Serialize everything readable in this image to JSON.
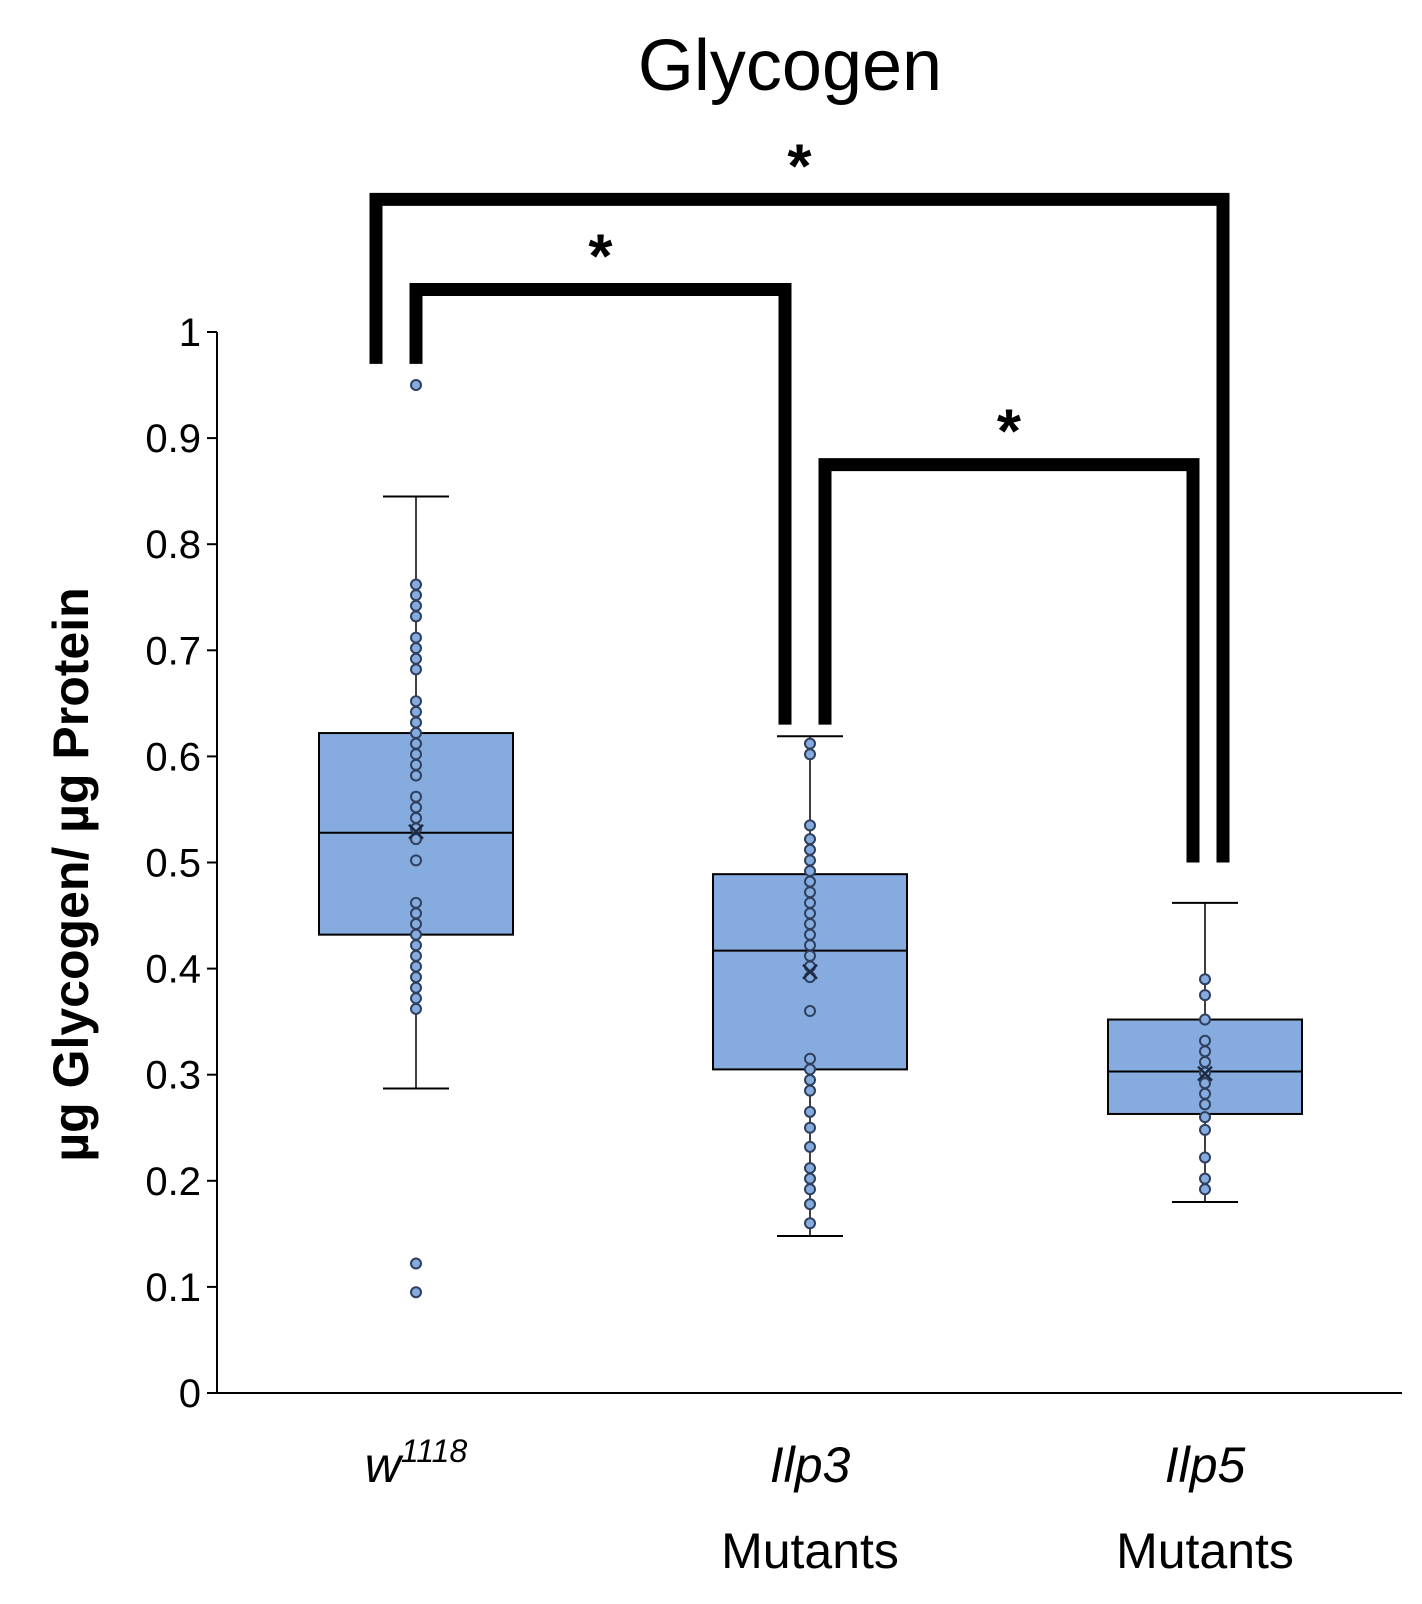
{
  "chart_data": {
    "type": "box",
    "title": "Glycogen",
    "ylabel": "µg Glycogen/ µg Protein",
    "xlabel": "",
    "ylim": [
      0,
      1
    ],
    "yticks": [
      "0",
      "0.1",
      "0.2",
      "0.3",
      "0.4",
      "0.5",
      "0.6",
      "0.7",
      "0.8",
      "0.9",
      "1"
    ],
    "grid": false,
    "legend": "none",
    "colors": {
      "box_fill": "#86acdf",
      "box_stroke": "#000000",
      "point_stroke": "#2f3f5e",
      "bracket": "#000000"
    },
    "groups": [
      {
        "name": "w",
        "sup": "1118",
        "sub": "",
        "whisker_low": 0.287,
        "q1": 0.432,
        "median": 0.528,
        "q3": 0.622,
        "whisker_high": 0.845,
        "mean": 0.529,
        "points": [
          0.095,
          0.122,
          0.362,
          0.372,
          0.382,
          0.392,
          0.402,
          0.412,
          0.422,
          0.432,
          0.442,
          0.452,
          0.462,
          0.502,
          0.522,
          0.532,
          0.542,
          0.552,
          0.562,
          0.582,
          0.592,
          0.602,
          0.612,
          0.622,
          0.632,
          0.642,
          0.652,
          0.682,
          0.692,
          0.702,
          0.712,
          0.732,
          0.742,
          0.752,
          0.762,
          0.95
        ]
      },
      {
        "name": "Ilp3",
        "sup": "",
        "sub": "Mutants",
        "whisker_low": 0.148,
        "q1": 0.305,
        "median": 0.417,
        "q3": 0.489,
        "whisker_high": 0.619,
        "mean": 0.397,
        "points": [
          0.16,
          0.178,
          0.192,
          0.202,
          0.212,
          0.232,
          0.25,
          0.265,
          0.285,
          0.295,
          0.305,
          0.315,
          0.36,
          0.392,
          0.402,
          0.412,
          0.422,
          0.432,
          0.442,
          0.452,
          0.462,
          0.472,
          0.482,
          0.492,
          0.502,
          0.512,
          0.522,
          0.535,
          0.602,
          0.612
        ]
      },
      {
        "name": "Ilp5",
        "sup": "",
        "sub": "Mutants",
        "whisker_low": 0.18,
        "q1": 0.263,
        "median": 0.303,
        "q3": 0.352,
        "whisker_high": 0.462,
        "mean": 0.301,
        "points": [
          0.192,
          0.202,
          0.222,
          0.248,
          0.26,
          0.272,
          0.282,
          0.292,
          0.302,
          0.312,
          0.322,
          0.332,
          0.352,
          0.375,
          0.39
        ]
      }
    ],
    "significance": [
      {
        "from": 0,
        "to": 1,
        "label": "*",
        "height": 1.04,
        "drop_left": 0.97,
        "drop_right": 0.63
      },
      {
        "from": 1,
        "to": 2,
        "label": "*",
        "height": 0.875,
        "drop_left": 0.63,
        "drop_right": 0.5
      },
      {
        "from": 0,
        "to": 2,
        "label": "*",
        "height": 1.125,
        "drop_left": 0.97,
        "drop_right": 0.5
      }
    ]
  }
}
